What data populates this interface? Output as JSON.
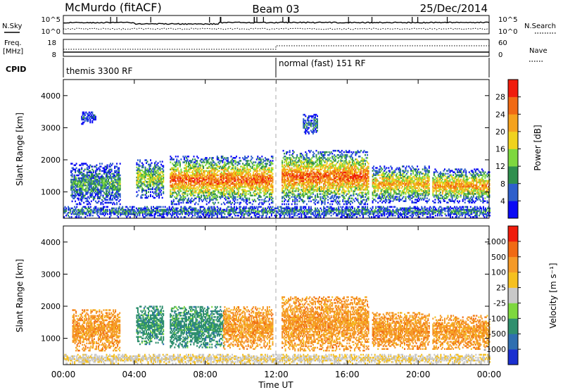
{
  "header": {
    "title": "McMurdo (fitACF)",
    "beam": "Beam 03",
    "date": "25/Dec/2014"
  },
  "status_panel": {
    "nsky_label": "N.Sky",
    "nsearch_label": "N.Search",
    "nsky_ticks": [
      "10^5",
      "10^0"
    ],
    "nsearch_ticks": [
      "10^5",
      "10^0"
    ],
    "freq_label_1": "Freq.",
    "freq_label_2": "[MHz]",
    "freq_ticks": [
      "18",
      "8"
    ],
    "nave_label": "Nave",
    "nave_ticks": [
      "60",
      "0"
    ],
    "cpid_label": "CPID",
    "cpid_segments": [
      "themis 3300 RF",
      "normal (fast) 151 RF"
    ]
  },
  "chart_data": [
    {
      "type": "heatmap",
      "name": "power",
      "ylabel": "Slant Range [km]",
      "xlabel": "",
      "xlim": [
        0,
        24
      ],
      "ylim": [
        180,
        4500
      ],
      "x_ticks": [
        "00:00",
        "04:00",
        "08:00",
        "12:00",
        "16:00",
        "20:00",
        "00:00"
      ],
      "y_ticks": [
        1000,
        2000,
        3000,
        4000
      ],
      "colorbar": {
        "label": "Power [dB]",
        "ticks": [
          4,
          8,
          12,
          16,
          20,
          24,
          28
        ],
        "colors": [
          "#0a0af5",
          "#2e5fcc",
          "#2f8f4e",
          "#7ed83f",
          "#f0d21e",
          "#f5a21e",
          "#f06a14",
          "#f01c0c"
        ]
      },
      "activity": [
        {
          "t0": 0.4,
          "t1": 3.2,
          "r0": 600,
          "r1": 1900,
          "level": 0.35
        },
        {
          "t0": 1.0,
          "t1": 1.8,
          "r0": 3100,
          "r1": 3500,
          "level": 0.15
        },
        {
          "t0": 4.1,
          "t1": 5.6,
          "r0": 800,
          "r1": 2000,
          "level": 0.5
        },
        {
          "t0": 6.0,
          "t1": 11.8,
          "r0": 600,
          "r1": 2100,
          "level": 0.85
        },
        {
          "t0": 12.3,
          "t1": 17.2,
          "r0": 600,
          "r1": 2300,
          "level": 0.85
        },
        {
          "t0": 13.5,
          "t1": 14.3,
          "r0": 2800,
          "r1": 3400,
          "level": 0.3
        },
        {
          "t0": 17.4,
          "t1": 20.6,
          "r0": 650,
          "r1": 1800,
          "level": 0.7
        },
        {
          "t0": 20.8,
          "t1": 24.0,
          "r0": 650,
          "r1": 1700,
          "level": 0.75
        },
        {
          "t0": 0.0,
          "t1": 24.0,
          "r0": 200,
          "r1": 550,
          "level": 0.3
        }
      ]
    },
    {
      "type": "heatmap",
      "name": "velocity",
      "ylabel": "Slant Range [km]",
      "xlabel": "Time UT",
      "xlim": [
        0,
        24
      ],
      "ylim": [
        180,
        4500
      ],
      "x_ticks": [
        "00:00",
        "04:00",
        "08:00",
        "12:00",
        "16:00",
        "20:00",
        "00:00"
      ],
      "y_ticks": [
        1000,
        2000,
        3000,
        4000
      ],
      "colorbar": {
        "label": "Velocity [m s⁻¹]",
        "ticks": [
          "1000",
          "500",
          "100",
          "25",
          "-25",
          "-100",
          "-500",
          "-1000"
        ],
        "colors": [
          "#1a2fd0",
          "#2f6fb0",
          "#2f8f6e",
          "#7ed83f",
          "#c8c8c8",
          "#f5c020",
          "#f59a28",
          "#f06a14",
          "#f01c0c"
        ]
      },
      "activity": [
        {
          "t0": 0.5,
          "t1": 3.2,
          "r0": 600,
          "r1": 1900,
          "sign": -1
        },
        {
          "t0": 4.1,
          "t1": 5.6,
          "r0": 800,
          "r1": 2000,
          "sign": 1
        },
        {
          "t0": 6.0,
          "t1": 9.0,
          "r0": 700,
          "r1": 2000,
          "sign": 1
        },
        {
          "t0": 9.0,
          "t1": 11.8,
          "r0": 650,
          "r1": 2000,
          "sign": -1
        },
        {
          "t0": 12.3,
          "t1": 17.2,
          "r0": 600,
          "r1": 2300,
          "sign": -1
        },
        {
          "t0": 17.4,
          "t1": 20.6,
          "r0": 650,
          "r1": 1800,
          "sign": -1
        },
        {
          "t0": 20.8,
          "t1": 24.0,
          "r0": 650,
          "r1": 1700,
          "sign": -1
        },
        {
          "t0": 0.0,
          "t1": 24.0,
          "r0": 200,
          "r1": 500,
          "sign": 0
        }
      ]
    }
  ]
}
